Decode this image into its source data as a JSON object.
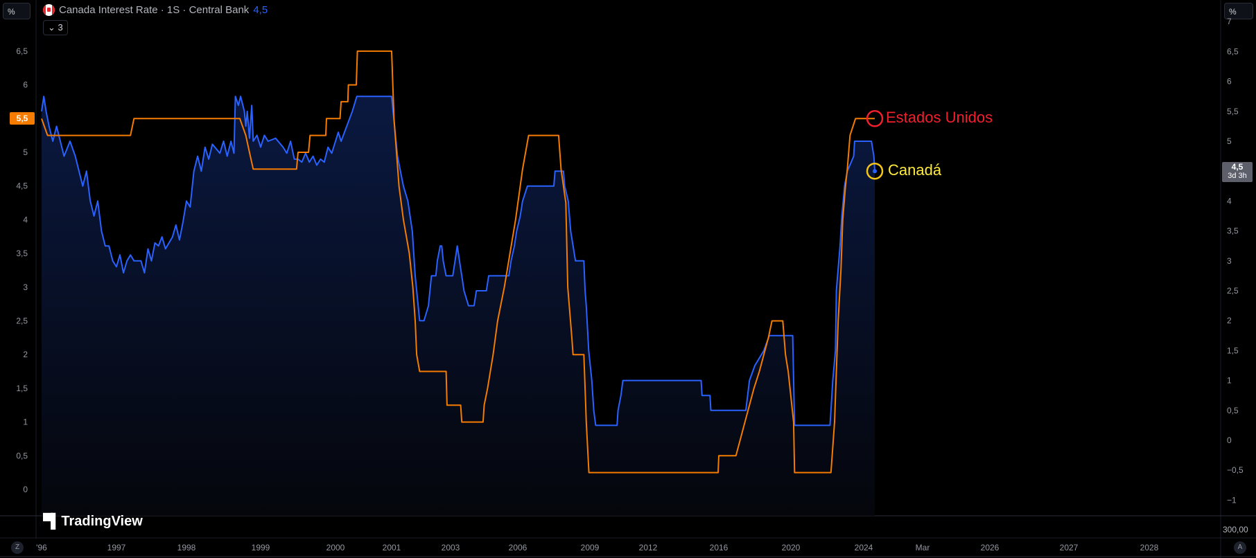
{
  "header": {
    "unit_left": "%",
    "unit_right": "%",
    "symbol_title": "Canada Interest Rate · 1S · Central Bank",
    "last_value": "4,5",
    "collapse_label": "3",
    "flag_icon": "canada-flag-icon"
  },
  "badges": {
    "left_value": "5,5",
    "right_value": "4,5",
    "right_countdown": "3d 3h",
    "scale_value": "300,00",
    "auto_label": "A",
    "zoom_label": "Z"
  },
  "logo": "TradingView",
  "annotations": {
    "us_label": "Estados Unidos",
    "canada_label": "Canadá",
    "us_color": "#f2202c",
    "canada_color": "#ffeb3b"
  },
  "chart_data": {
    "type": "line",
    "grid": false,
    "colors": {
      "canada": "#2962ff",
      "us": "#f57c00",
      "background": "#000000"
    },
    "x_ticks": [
      {
        "label": "'96",
        "year": 1996.0
      },
      {
        "label": "1997",
        "year": 1997
      },
      {
        "label": "1998",
        "year": 1998
      },
      {
        "label": "1999",
        "year": 1999
      },
      {
        "label": "2000",
        "year": 2000
      },
      {
        "label": "2001",
        "year": 2001
      },
      {
        "label": "2003",
        "year": 2003
      },
      {
        "label": "2006",
        "year": 2006
      },
      {
        "label": "2009",
        "year": 2009
      },
      {
        "label": "2012",
        "year": 2012
      },
      {
        "label": "2016",
        "year": 2016
      },
      {
        "label": "2020",
        "year": 2020
      },
      {
        "label": "2024",
        "year": 2024
      },
      {
        "label": "Mar",
        "year": 2025.17
      },
      {
        "label": "2026",
        "year": 2026
      },
      {
        "label": "2027",
        "year": 2027
      },
      {
        "label": "2028",
        "year": 2028
      }
    ],
    "left_axis": {
      "ticks": [
        "6,5",
        "6",
        "5",
        "4,5",
        "4",
        "3,5",
        "3",
        "2,5",
        "2",
        "1,5",
        "1",
        "0,5",
        "0"
      ],
      "values": [
        6.5,
        6,
        5,
        4.5,
        4,
        3.5,
        3,
        2.5,
        2,
        1.5,
        1,
        0.5,
        0
      ]
    },
    "right_axis": {
      "ticks": [
        "7",
        "6,5",
        "6",
        "5,5",
        "5",
        "4",
        "3,5",
        "3",
        "2,5",
        "2",
        "1,5",
        "1",
        "0,5",
        "0",
        "−0,5",
        "−1"
      ],
      "values": [
        7,
        6.5,
        6,
        5.5,
        5,
        4,
        3.5,
        3,
        2.5,
        2,
        1.5,
        1,
        0.5,
        0,
        -0.5,
        -1
      ]
    },
    "series": [
      {
        "key": "us",
        "axis": "left",
        "points": [
          [
            1996.0,
            5.5
          ],
          [
            1996.08,
            5.25
          ],
          [
            1997.2,
            5.25
          ],
          [
            1997.25,
            5.5
          ],
          [
            1998.72,
            5.5
          ],
          [
            1998.8,
            5.25
          ],
          [
            1998.85,
            5.0
          ],
          [
            1998.9,
            4.75
          ],
          [
            1999.48,
            4.75
          ],
          [
            1999.5,
            5.0
          ],
          [
            1999.64,
            5.0
          ],
          [
            1999.66,
            5.25
          ],
          [
            1999.87,
            5.25
          ],
          [
            1999.88,
            5.5
          ],
          [
            2000.08,
            5.5
          ],
          [
            2000.1,
            5.75
          ],
          [
            2000.22,
            5.75
          ],
          [
            2000.23,
            6.0
          ],
          [
            2000.37,
            6.0
          ],
          [
            2000.39,
            6.5
          ],
          [
            2001.0,
            6.5
          ],
          [
            2001.08,
            5.5
          ],
          [
            2001.25,
            4.5
          ],
          [
            2001.4,
            4.0
          ],
          [
            2001.6,
            3.5
          ],
          [
            2001.72,
            3.0
          ],
          [
            2001.8,
            2.5
          ],
          [
            2001.85,
            2.0
          ],
          [
            2001.95,
            1.75
          ],
          [
            2002.85,
            1.75
          ],
          [
            2002.88,
            1.25
          ],
          [
            2003.45,
            1.25
          ],
          [
            2003.5,
            1.0
          ],
          [
            2004.45,
            1.0
          ],
          [
            2004.5,
            1.25
          ],
          [
            2004.65,
            1.5
          ],
          [
            2004.9,
            2.0
          ],
          [
            2005.1,
            2.5
          ],
          [
            2005.4,
            3.0
          ],
          [
            2005.65,
            3.5
          ],
          [
            2005.9,
            4.0
          ],
          [
            2006.2,
            4.75
          ],
          [
            2006.45,
            5.25
          ],
          [
            2007.7,
            5.25
          ],
          [
            2007.8,
            4.75
          ],
          [
            2008.0,
            4.25
          ],
          [
            2008.08,
            3.0
          ],
          [
            2008.25,
            2.25
          ],
          [
            2008.3,
            2.0
          ],
          [
            2008.75,
            2.0
          ],
          [
            2008.8,
            1.5
          ],
          [
            2008.85,
            1.0
          ],
          [
            2008.96,
            0.25
          ],
          [
            2015.96,
            0.25
          ],
          [
            2016.0,
            0.5
          ],
          [
            2016.95,
            0.5
          ],
          [
            2017.2,
            0.75
          ],
          [
            2017.45,
            1.0
          ],
          [
            2017.95,
            1.5
          ],
          [
            2018.25,
            1.75
          ],
          [
            2018.5,
            2.0
          ],
          [
            2018.75,
            2.25
          ],
          [
            2018.95,
            2.5
          ],
          [
            2019.55,
            2.5
          ],
          [
            2019.7,
            2.0
          ],
          [
            2019.85,
            1.75
          ],
          [
            2020.15,
            1.0
          ],
          [
            2020.2,
            0.25
          ],
          [
            2022.2,
            0.25
          ],
          [
            2022.4,
            1.0
          ],
          [
            2022.5,
            1.75
          ],
          [
            2022.6,
            2.5
          ],
          [
            2022.75,
            3.25
          ],
          [
            2022.85,
            4.0
          ],
          [
            2023.0,
            4.5
          ],
          [
            2023.1,
            4.75
          ],
          [
            2023.25,
            5.25
          ],
          [
            2023.55,
            5.5
          ],
          [
            2024.6,
            5.5
          ]
        ]
      },
      {
        "key": "canada",
        "axis": "right",
        "points": [
          [
            1996.0,
            5.5
          ],
          [
            1996.03,
            5.75
          ],
          [
            1996.06,
            5.5
          ],
          [
            1996.1,
            5.25
          ],
          [
            1996.15,
            5.0
          ],
          [
            1996.2,
            5.25
          ],
          [
            1996.25,
            5.0
          ],
          [
            1996.3,
            4.75
          ],
          [
            1996.38,
            5.0
          ],
          [
            1996.45,
            4.75
          ],
          [
            1996.5,
            4.5
          ],
          [
            1996.55,
            4.25
          ],
          [
            1996.6,
            4.5
          ],
          [
            1996.65,
            4.0
          ],
          [
            1996.7,
            3.75
          ],
          [
            1996.75,
            4.0
          ],
          [
            1996.8,
            3.5
          ],
          [
            1996.85,
            3.25
          ],
          [
            1996.9,
            3.25
          ],
          [
            1996.95,
            3.0
          ],
          [
            1997.0,
            2.9
          ],
          [
            1997.05,
            3.1
          ],
          [
            1997.1,
            2.8
          ],
          [
            1997.15,
            3.0
          ],
          [
            1997.2,
            3.1
          ],
          [
            1997.25,
            3.0
          ],
          [
            1997.35,
            3.0
          ],
          [
            1997.4,
            2.8
          ],
          [
            1997.45,
            3.2
          ],
          [
            1997.5,
            3.0
          ],
          [
            1997.55,
            3.3
          ],
          [
            1997.6,
            3.25
          ],
          [
            1997.65,
            3.4
          ],
          [
            1997.7,
            3.2
          ],
          [
            1997.8,
            3.4
          ],
          [
            1997.85,
            3.6
          ],
          [
            1997.9,
            3.35
          ],
          [
            1997.95,
            3.65
          ],
          [
            1998.0,
            4.0
          ],
          [
            1998.05,
            3.9
          ],
          [
            1998.1,
            4.5
          ],
          [
            1998.15,
            4.75
          ],
          [
            1998.2,
            4.5
          ],
          [
            1998.25,
            4.9
          ],
          [
            1998.3,
            4.7
          ],
          [
            1998.35,
            4.95
          ],
          [
            1998.45,
            4.8
          ],
          [
            1998.5,
            5.0
          ],
          [
            1998.55,
            4.75
          ],
          [
            1998.6,
            5.0
          ],
          [
            1998.64,
            4.8
          ],
          [
            1998.66,
            5.75
          ],
          [
            1998.7,
            5.6
          ],
          [
            1998.73,
            5.75
          ],
          [
            1998.78,
            5.5
          ],
          [
            1998.8,
            5.25
          ],
          [
            1998.82,
            5.5
          ],
          [
            1998.85,
            5.05
          ],
          [
            1998.88,
            5.6
          ],
          [
            1998.9,
            5.0
          ],
          [
            1998.95,
            5.1
          ],
          [
            1999.0,
            4.9
          ],
          [
            1999.05,
            5.1
          ],
          [
            1999.1,
            5.0
          ],
          [
            1999.2,
            5.05
          ],
          [
            1999.3,
            4.9
          ],
          [
            1999.35,
            4.8
          ],
          [
            1999.4,
            5.0
          ],
          [
            1999.45,
            4.7
          ],
          [
            1999.5,
            4.7
          ],
          [
            1999.55,
            4.65
          ],
          [
            1999.6,
            4.8
          ],
          [
            1999.65,
            4.65
          ],
          [
            1999.7,
            4.75
          ],
          [
            1999.75,
            4.6
          ],
          [
            1999.8,
            4.7
          ],
          [
            1999.85,
            4.65
          ],
          [
            1999.9,
            4.9
          ],
          [
            1999.95,
            4.8
          ],
          [
            2000.0,
            5.0
          ],
          [
            2000.05,
            5.15
          ],
          [
            2000.1,
            5.0
          ],
          [
            2000.2,
            5.25
          ],
          [
            2000.3,
            5.5
          ],
          [
            2000.38,
            5.75
          ],
          [
            2001.0,
            5.75
          ],
          [
            2001.05,
            5.5
          ],
          [
            2001.1,
            5.25
          ],
          [
            2001.2,
            4.75
          ],
          [
            2001.3,
            4.5
          ],
          [
            2001.4,
            4.25
          ],
          [
            2001.55,
            4.0
          ],
          [
            2001.7,
            3.5
          ],
          [
            2001.8,
            2.75
          ],
          [
            2001.9,
            2.25
          ],
          [
            2001.95,
            2.0
          ],
          [
            2002.1,
            2.0
          ],
          [
            2002.25,
            2.25
          ],
          [
            2002.35,
            2.75
          ],
          [
            2002.5,
            2.75
          ],
          [
            2002.55,
            3.0
          ],
          [
            2002.65,
            3.25
          ],
          [
            2002.7,
            3.25
          ],
          [
            2002.75,
            3.0
          ],
          [
            2002.85,
            2.75
          ],
          [
            2003.1,
            2.75
          ],
          [
            2003.2,
            3.0
          ],
          [
            2003.3,
            3.25
          ],
          [
            2003.4,
            3.0
          ],
          [
            2003.5,
            2.75
          ],
          [
            2003.6,
            2.5
          ],
          [
            2003.8,
            2.25
          ],
          [
            2004.05,
            2.25
          ],
          [
            2004.15,
            2.5
          ],
          [
            2004.6,
            2.5
          ],
          [
            2004.7,
            2.75
          ],
          [
            2005.6,
            2.75
          ],
          [
            2005.7,
            3.0
          ],
          [
            2005.85,
            3.25
          ],
          [
            2005.95,
            3.5
          ],
          [
            2006.1,
            3.75
          ],
          [
            2006.2,
            4.0
          ],
          [
            2006.4,
            4.25
          ],
          [
            2007.5,
            4.25
          ],
          [
            2007.55,
            4.5
          ],
          [
            2007.9,
            4.5
          ],
          [
            2007.95,
            4.25
          ],
          [
            2008.1,
            4.0
          ],
          [
            2008.2,
            3.5
          ],
          [
            2008.4,
            3.0
          ],
          [
            2008.75,
            3.0
          ],
          [
            2008.8,
            2.5
          ],
          [
            2008.85,
            2.25
          ],
          [
            2008.95,
            1.5
          ],
          [
            2009.1,
            1.0
          ],
          [
            2009.2,
            0.5
          ],
          [
            2009.3,
            0.25
          ],
          [
            2010.4,
            0.25
          ],
          [
            2010.45,
            0.5
          ],
          [
            2010.6,
            0.75
          ],
          [
            2010.7,
            1.0
          ],
          [
            2015.0,
            1.0
          ],
          [
            2015.05,
            0.75
          ],
          [
            2015.5,
            0.75
          ],
          [
            2015.55,
            0.5
          ],
          [
            2017.5,
            0.5
          ],
          [
            2017.6,
            0.75
          ],
          [
            2017.7,
            1.0
          ],
          [
            2018.0,
            1.25
          ],
          [
            2018.5,
            1.5
          ],
          [
            2018.8,
            1.75
          ],
          [
            2020.1,
            1.75
          ],
          [
            2020.2,
            0.25
          ],
          [
            2022.15,
            0.25
          ],
          [
            2022.2,
            0.5
          ],
          [
            2022.3,
            1.0
          ],
          [
            2022.45,
            1.5
          ],
          [
            2022.5,
            2.5
          ],
          [
            2022.7,
            3.25
          ],
          [
            2022.8,
            3.75
          ],
          [
            2022.95,
            4.25
          ],
          [
            2023.1,
            4.5
          ],
          [
            2023.45,
            4.75
          ],
          [
            2023.5,
            5.0
          ],
          [
            2024.42,
            5.0
          ],
          [
            2024.55,
            4.75
          ],
          [
            2024.6,
            4.5
          ]
        ]
      }
    ]
  }
}
